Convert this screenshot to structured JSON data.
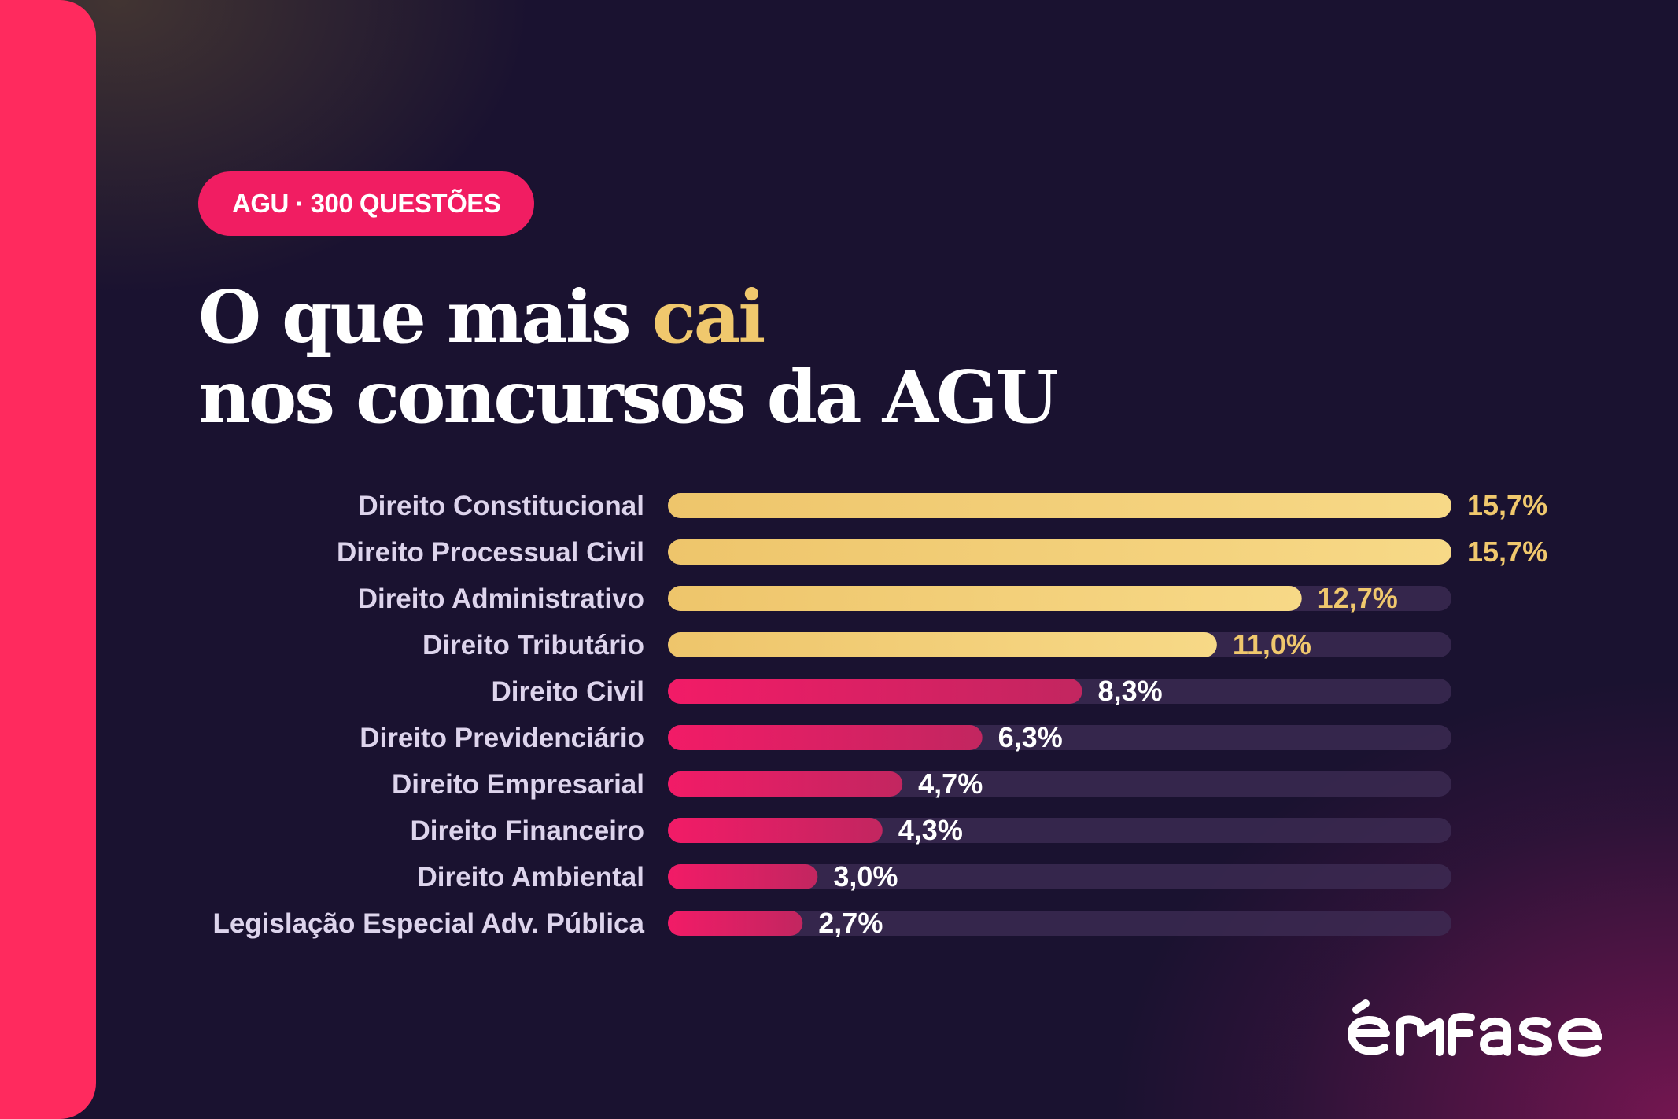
{
  "badge": {
    "text": "AGU · 300 QUESTÕES"
  },
  "headline": {
    "line1_pre": "O que mais ",
    "line1_highlight": "cai",
    "line2": "nos concursos da AGU"
  },
  "brand": {
    "logo": "enfase-logo"
  },
  "colors": {
    "background": "#1a1230",
    "accent_strip": "#ff2a5e",
    "badge": "#f11d62",
    "gold": "#f0c86d",
    "pink": "#ee1c66",
    "track": "#3f2e55",
    "label": "#ddd4ec",
    "value_white": "#ffffff"
  },
  "chart_data": {
    "type": "bar",
    "orientation": "horizontal",
    "title": "",
    "xlabel": "",
    "ylabel": "",
    "xlim": [
      0,
      15.7
    ],
    "grid": false,
    "categories": [
      "Direito Constitucional",
      "Direito Processual Civil",
      "Direito Administrativo",
      "Direito Tributário",
      "Direito Civil",
      "Direito Previdenciário",
      "Direito Empresarial",
      "Direito Financeiro",
      "Direito Ambiental",
      "Legislação Especial Adv. Pública"
    ],
    "values": [
      15.7,
      15.7,
      12.7,
      11.0,
      8.3,
      6.3,
      4.7,
      4.3,
      3.0,
      2.7
    ],
    "value_labels": [
      "15,7%",
      "15,7%",
      "12,7%",
      "11,0%",
      "8,3%",
      "6,3%",
      "4,7%",
      "4,3%",
      "3,0%",
      "2,7%"
    ],
    "series_colors": [
      "gold",
      "gold",
      "gold",
      "gold",
      "pink",
      "pink",
      "pink",
      "pink",
      "pink",
      "pink"
    ]
  }
}
